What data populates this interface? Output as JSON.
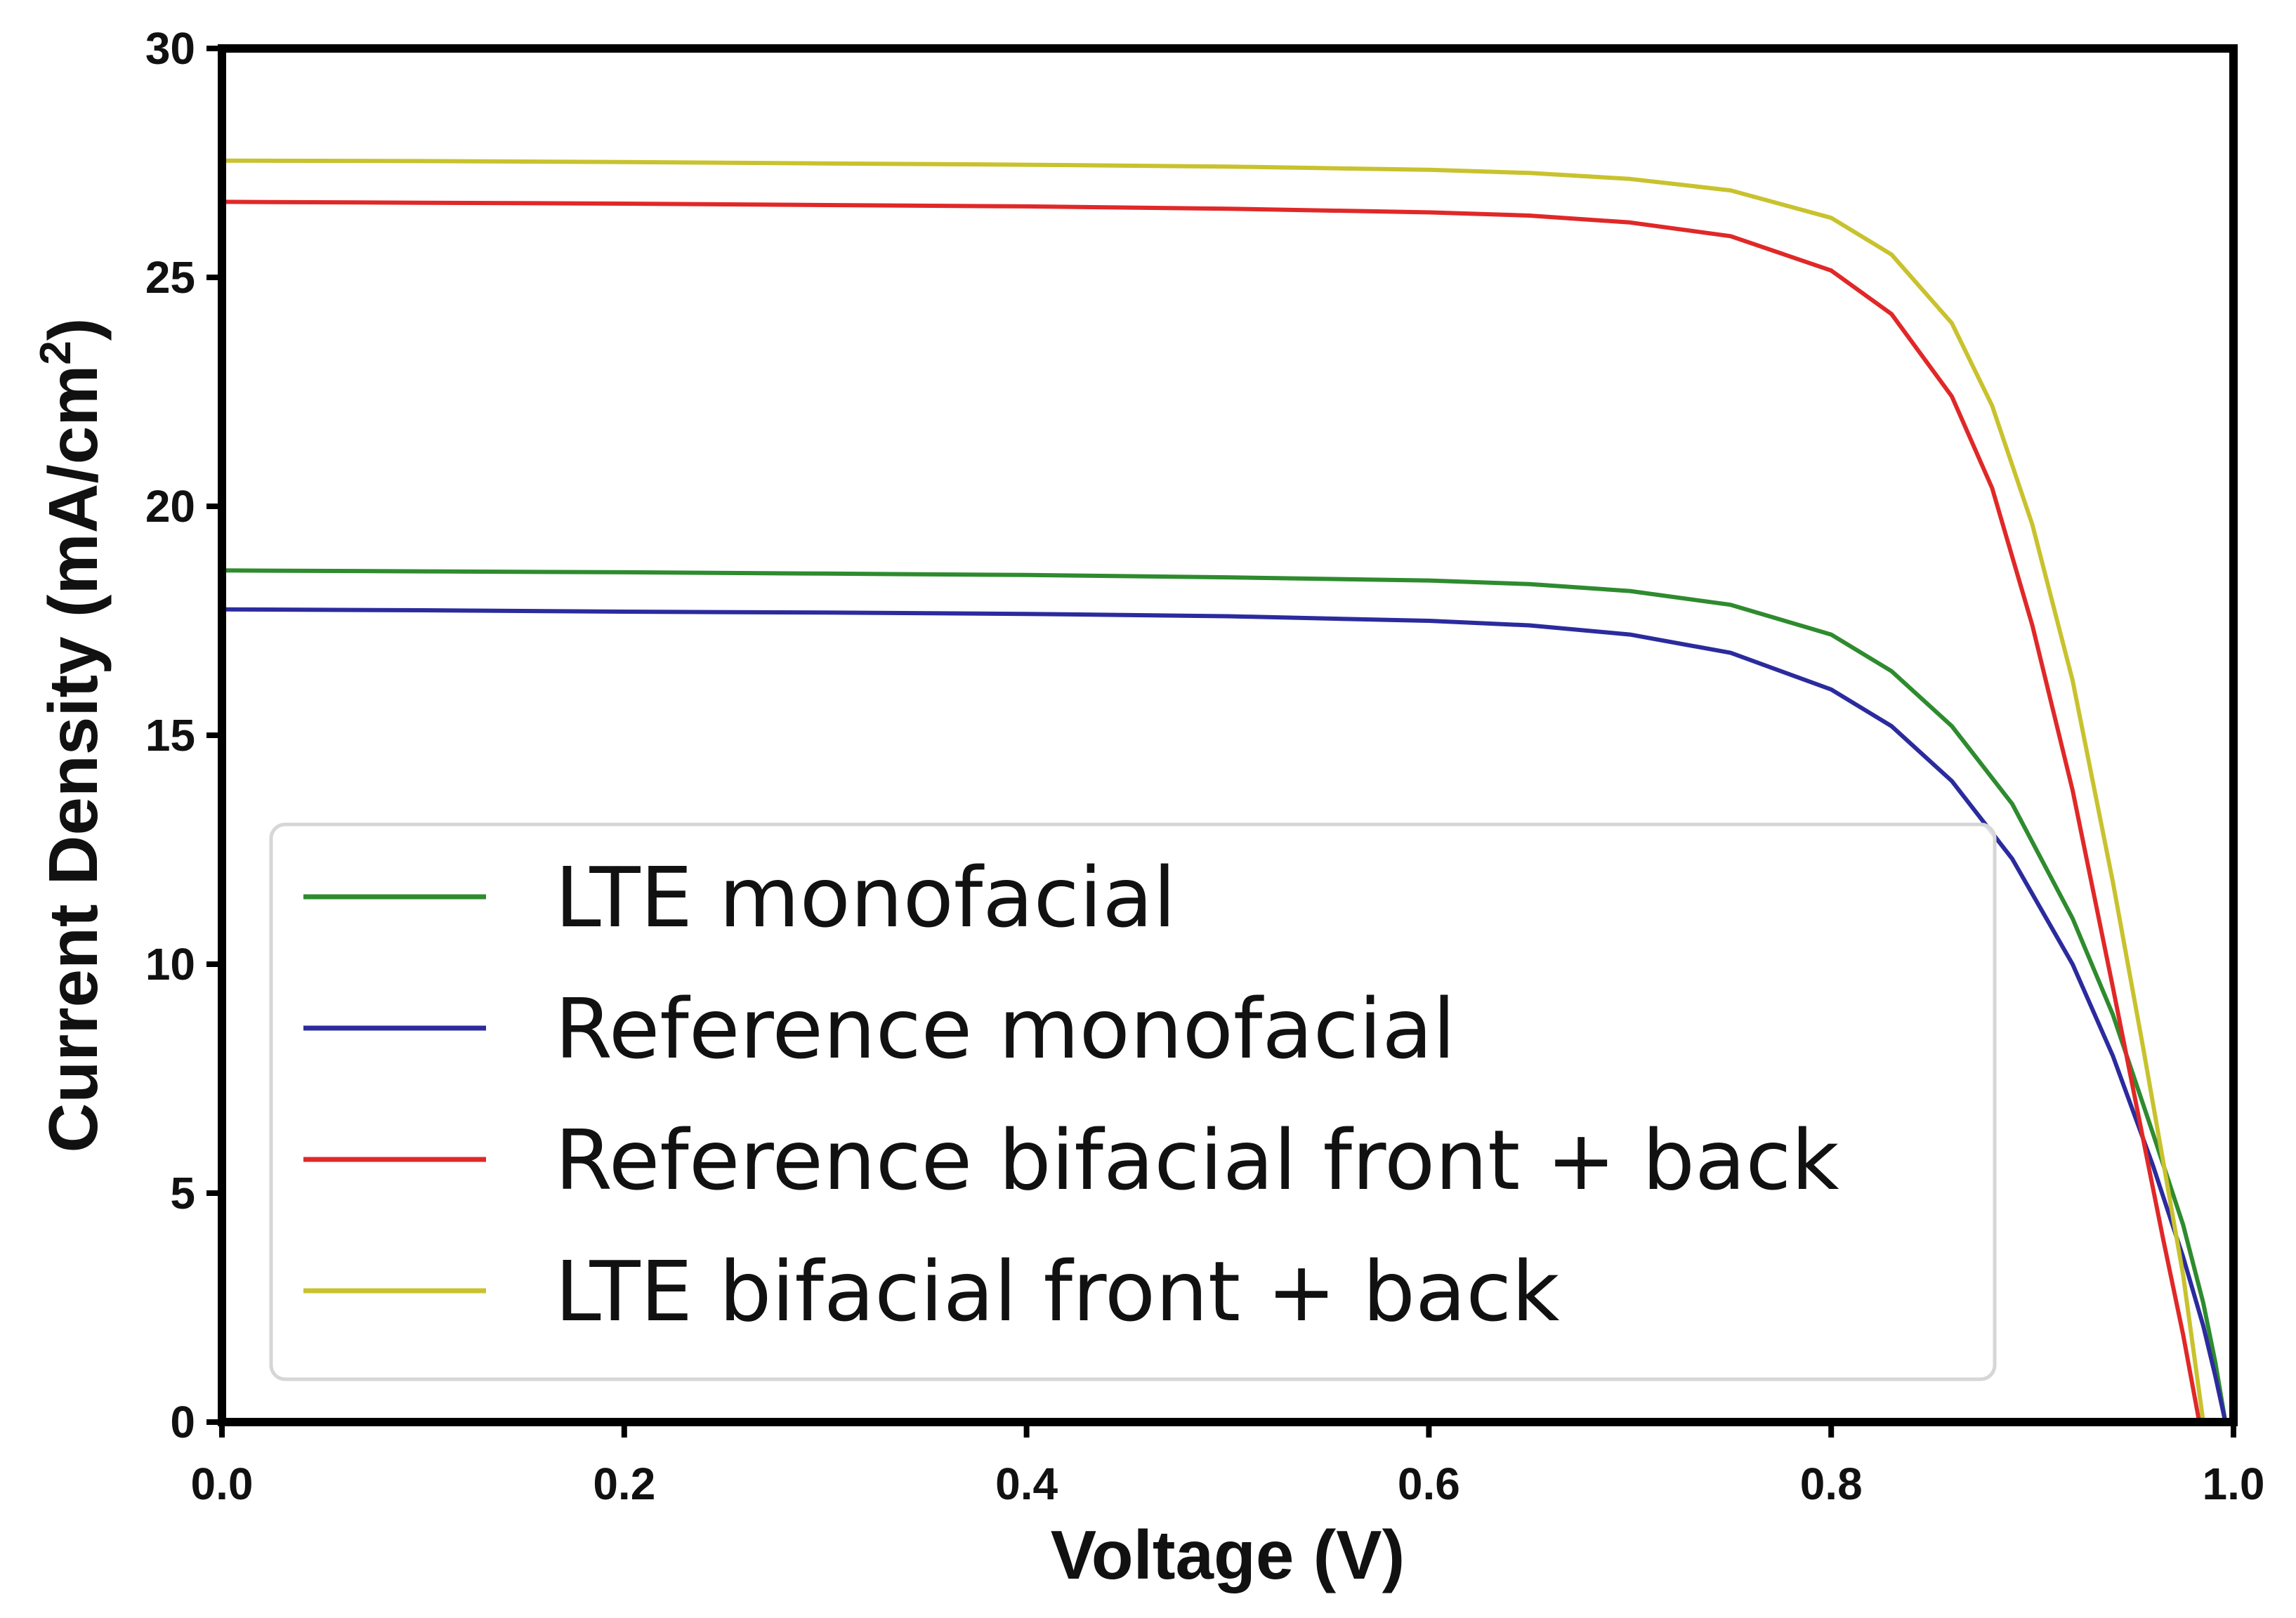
{
  "chart_data": {
    "type": "line",
    "xlabel": "Voltage (V)",
    "ylabel": "Current Density (mA/cm",
    "ylabel_sup": "2",
    "ylabel_end": ")",
    "xlim": [
      0.0,
      1.0
    ],
    "ylim": [
      0,
      30
    ],
    "x_ticks": [
      0.0,
      0.2,
      0.4,
      0.6,
      0.8,
      1.0
    ],
    "x_tick_labels": [
      "0.0",
      "0.2",
      "0.4",
      "0.6",
      "0.8",
      "1.0"
    ],
    "y_ticks": [
      0,
      5,
      10,
      15,
      20,
      25,
      30
    ],
    "y_tick_labels": [
      "0",
      "5",
      "10",
      "15",
      "20",
      "25",
      "30"
    ],
    "grid": false,
    "legend_position": "lower-left",
    "series": [
      {
        "name": "LTE monofacial",
        "color": "#2e8b2e",
        "x": [
          0.0,
          0.1,
          0.2,
          0.3,
          0.4,
          0.5,
          0.6,
          0.65,
          0.7,
          0.75,
          0.8,
          0.83,
          0.86,
          0.89,
          0.92,
          0.94,
          0.96,
          0.975,
          0.985,
          0.991,
          0.996
        ],
        "y": [
          18.6,
          18.58,
          18.56,
          18.53,
          18.5,
          18.45,
          18.38,
          18.3,
          18.15,
          17.85,
          17.2,
          16.4,
          15.2,
          13.5,
          11.0,
          8.9,
          6.3,
          4.3,
          2.6,
          1.3,
          0.0
        ]
      },
      {
        "name": "Reference monofacial",
        "color": "#2b2b9e",
        "x": [
          0.0,
          0.1,
          0.2,
          0.3,
          0.4,
          0.5,
          0.6,
          0.65,
          0.7,
          0.75,
          0.8,
          0.83,
          0.86,
          0.89,
          0.92,
          0.94,
          0.96,
          0.975,
          0.985,
          0.991,
          0.996
        ],
        "y": [
          17.75,
          17.73,
          17.7,
          17.68,
          17.65,
          17.6,
          17.5,
          17.4,
          17.2,
          16.8,
          16.0,
          15.2,
          14.0,
          12.3,
          10.0,
          8.0,
          5.6,
          3.6,
          2.1,
          1.0,
          0.0
        ]
      },
      {
        "name": "Reference bifacial front + back",
        "color": "#e02828",
        "x": [
          0.0,
          0.1,
          0.2,
          0.3,
          0.4,
          0.5,
          0.6,
          0.65,
          0.7,
          0.75,
          0.8,
          0.83,
          0.86,
          0.88,
          0.9,
          0.92,
          0.94,
          0.955,
          0.965,
          0.975,
          0.983
        ],
        "y": [
          26.65,
          26.63,
          26.61,
          26.58,
          26.55,
          26.5,
          26.42,
          26.35,
          26.2,
          25.9,
          25.15,
          24.2,
          22.4,
          20.4,
          17.4,
          13.8,
          9.5,
          6.2,
          4.0,
          1.9,
          0.0
        ]
      },
      {
        "name": "LTE bifacial front + back",
        "color": "#c8c22e",
        "x": [
          0.0,
          0.1,
          0.2,
          0.3,
          0.4,
          0.5,
          0.6,
          0.65,
          0.7,
          0.75,
          0.8,
          0.83,
          0.86,
          0.88,
          0.9,
          0.92,
          0.94,
          0.955,
          0.965,
          0.975,
          0.985
        ],
        "y": [
          27.55,
          27.54,
          27.52,
          27.49,
          27.46,
          27.42,
          27.35,
          27.28,
          27.15,
          26.9,
          26.3,
          25.5,
          24.0,
          22.2,
          19.6,
          16.2,
          11.8,
          8.2,
          5.7,
          3.2,
          0.0
        ]
      }
    ]
  }
}
